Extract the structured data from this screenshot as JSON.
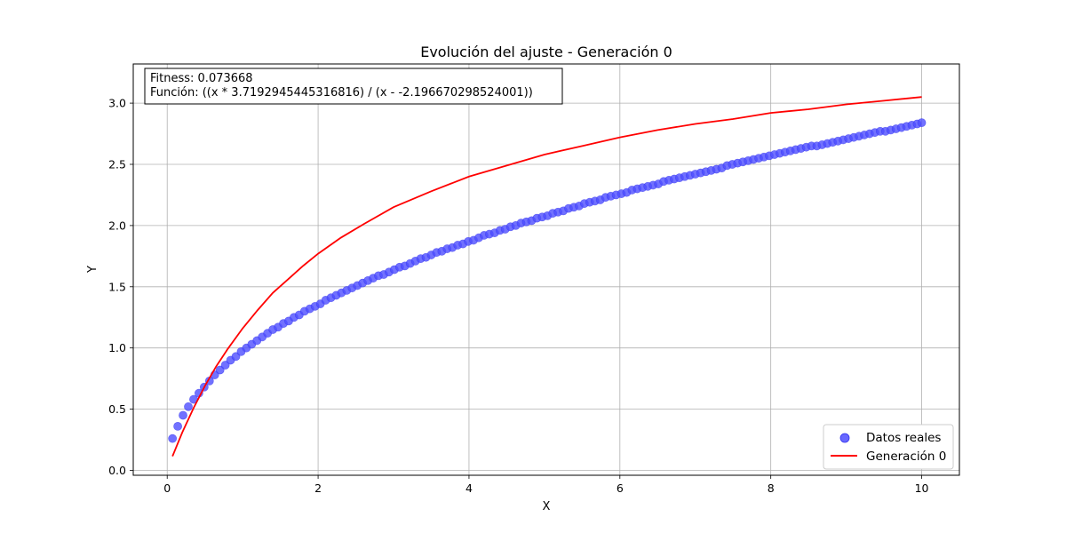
{
  "chart_data": {
    "type": "scatter",
    "title": "Evolución del ajuste - Generación 0",
    "xlabel": "X",
    "ylabel": "Y",
    "xlim": [
      -0.45,
      10.5
    ],
    "ylim": [
      -0.04,
      3.32
    ],
    "xticks": [
      0,
      2,
      4,
      6,
      8,
      10
    ],
    "yticks": [
      0.0,
      0.5,
      1.0,
      1.5,
      2.0,
      2.5,
      3.0
    ],
    "xtick_labels": [
      "0",
      "2",
      "4",
      "6",
      "8",
      "10"
    ],
    "ytick_labels": [
      "0.0",
      "0.5",
      "1.0",
      "1.5",
      "2.0",
      "2.5",
      "3.0"
    ],
    "grid": true,
    "legend_position": "bottom-right",
    "annotation": {
      "fitness": "Fitness: 0.073668",
      "function": "Función: ((x * 3.7192945445316816) / (x - -2.196670298524001))"
    },
    "series": [
      {
        "name": "Datos reales",
        "kind": "scatter",
        "color": "#4d4dff",
        "x": [
          0.07,
          0.14,
          0.21,
          0.28,
          0.35,
          0.42,
          0.49,
          0.56,
          0.63,
          0.7,
          0.77,
          0.84,
          0.91,
          0.98,
          1.05,
          1.12,
          1.19,
          1.26,
          1.33,
          1.4,
          1.47,
          1.54,
          1.61,
          1.68,
          1.75,
          1.82,
          1.89,
          1.96,
          2.03,
          2.1,
          2.17,
          2.24,
          2.31,
          2.38,
          2.45,
          2.52,
          2.59,
          2.66,
          2.73,
          2.8,
          2.87,
          2.94,
          3.01,
          3.08,
          3.15,
          3.22,
          3.29,
          3.36,
          3.43,
          3.5,
          3.57,
          3.64,
          3.71,
          3.78,
          3.85,
          3.92,
          3.99,
          4.06,
          4.13,
          4.2,
          4.27,
          4.34,
          4.41,
          4.48,
          4.55,
          4.62,
          4.69,
          4.76,
          4.83,
          4.9,
          4.97,
          5.04,
          5.11,
          5.18,
          5.25,
          5.32,
          5.39,
          5.46,
          5.53,
          5.6,
          5.67,
          5.74,
          5.81,
          5.88,
          5.95,
          6.02,
          6.09,
          6.16,
          6.23,
          6.3,
          6.37,
          6.44,
          6.51,
          6.58,
          6.65,
          6.72,
          6.79,
          6.86,
          6.93,
          7.0,
          7.07,
          7.14,
          7.21,
          7.28,
          7.35,
          7.42,
          7.49,
          7.56,
          7.63,
          7.7,
          7.77,
          7.84,
          7.91,
          7.98,
          8.05,
          8.12,
          8.19,
          8.26,
          8.33,
          8.4,
          8.47,
          8.54,
          8.61,
          8.68,
          8.75,
          8.82,
          8.89,
          8.96,
          9.03,
          9.1,
          9.17,
          9.24,
          9.31,
          9.38,
          9.45,
          9.52,
          9.59,
          9.66,
          9.73,
          9.8,
          9.87,
          9.94,
          10.0
        ],
        "y": [
          0.26,
          0.36,
          0.45,
          0.52,
          0.58,
          0.63,
          0.68,
          0.73,
          0.78,
          0.82,
          0.86,
          0.9,
          0.93,
          0.97,
          1.0,
          1.03,
          1.06,
          1.09,
          1.12,
          1.15,
          1.17,
          1.2,
          1.22,
          1.25,
          1.27,
          1.3,
          1.32,
          1.34,
          1.36,
          1.39,
          1.41,
          1.43,
          1.45,
          1.47,
          1.49,
          1.51,
          1.53,
          1.55,
          1.57,
          1.59,
          1.6,
          1.62,
          1.64,
          1.66,
          1.67,
          1.69,
          1.71,
          1.73,
          1.74,
          1.76,
          1.78,
          1.79,
          1.81,
          1.82,
          1.84,
          1.85,
          1.87,
          1.88,
          1.9,
          1.92,
          1.93,
          1.94,
          1.96,
          1.97,
          1.99,
          2.0,
          2.02,
          2.03,
          2.04,
          2.06,
          2.07,
          2.08,
          2.1,
          2.11,
          2.12,
          2.14,
          2.15,
          2.16,
          2.18,
          2.19,
          2.2,
          2.21,
          2.23,
          2.24,
          2.25,
          2.26,
          2.27,
          2.29,
          2.3,
          2.31,
          2.32,
          2.33,
          2.34,
          2.36,
          2.37,
          2.38,
          2.39,
          2.4,
          2.41,
          2.42,
          2.43,
          2.44,
          2.45,
          2.46,
          2.47,
          2.49,
          2.5,
          2.51,
          2.52,
          2.53,
          2.54,
          2.55,
          2.56,
          2.57,
          2.58,
          2.59,
          2.6,
          2.61,
          2.62,
          2.63,
          2.64,
          2.65,
          2.65,
          2.66,
          2.67,
          2.68,
          2.69,
          2.7,
          2.71,
          2.72,
          2.73,
          2.74,
          2.75,
          2.76,
          2.77,
          2.77,
          2.78,
          2.79,
          2.8,
          2.81,
          2.82,
          2.83,
          2.84
        ]
      },
      {
        "name": "Generación 0",
        "kind": "line",
        "color": "#ff0000",
        "x": [
          0.07,
          0.2,
          0.35,
          0.5,
          0.65,
          0.8,
          1.0,
          1.2,
          1.4,
          1.6,
          1.8,
          2.0,
          2.3,
          2.6,
          3.0,
          3.5,
          4.0,
          4.5,
          5.0,
          5.5,
          6.0,
          6.5,
          7.0,
          7.5,
          8.0,
          8.5,
          9.0,
          9.5,
          10.0
        ],
        "y": [
          0.115,
          0.31,
          0.51,
          0.69,
          0.85,
          0.99,
          1.16,
          1.31,
          1.45,
          1.56,
          1.67,
          1.77,
          1.9,
          2.01,
          2.15,
          2.28,
          2.4,
          2.49,
          2.58,
          2.65,
          2.72,
          2.78,
          2.83,
          2.87,
          2.92,
          2.95,
          2.99,
          3.02,
          3.05
        ]
      }
    ]
  }
}
